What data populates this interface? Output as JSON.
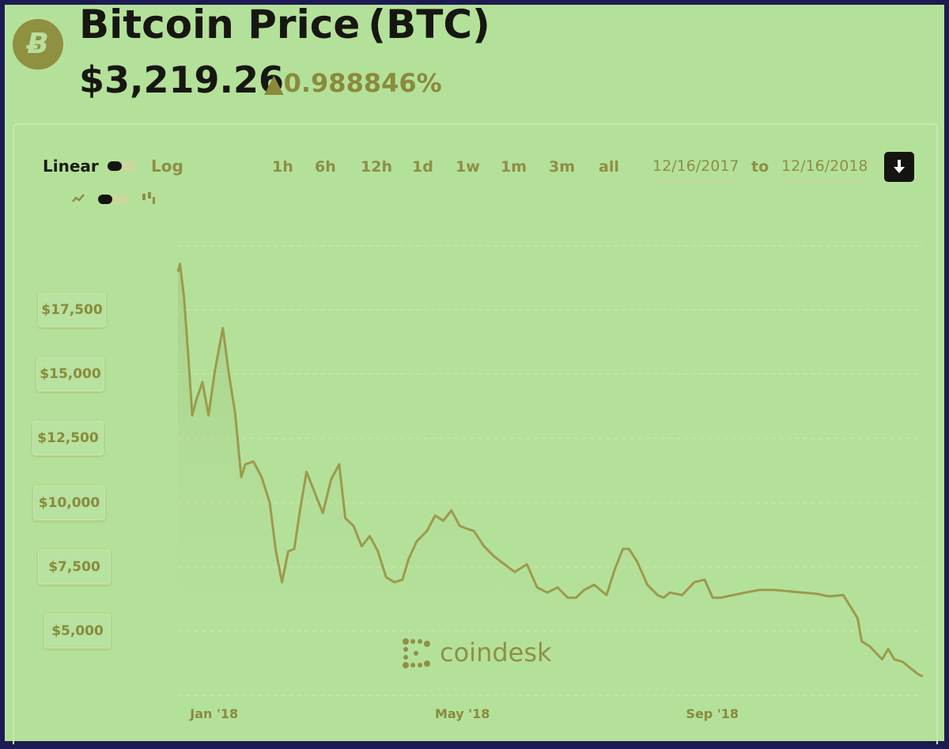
{
  "header": {
    "title": "Bitcoin Price (BTC)",
    "price": "$3,219.26",
    "change": "▲0.988846%",
    "logo_letter": "Ƀ"
  },
  "controls": {
    "scale_linear": "Linear",
    "scale_log": "Log",
    "ranges": [
      "1h",
      "6h",
      "12h",
      "1d",
      "1w",
      "1m",
      "3m",
      "all"
    ],
    "date_from": "12/16/2017",
    "to_label": "to",
    "date_to": "12/16/2018"
  },
  "watermark": "coindesk",
  "colors": {
    "background": "#b4e19a",
    "line": "#9d9a4c",
    "grid": "#cfe1a8",
    "text_dark": "#171711",
    "accent": "#8a8a3c"
  },
  "chart_data": {
    "type": "area",
    "ylim": [
      2500,
      20000
    ],
    "yticks": [
      "$5,000",
      "$7,500",
      "$10,000",
      "$12,500",
      "$15,000",
      "$17,500"
    ],
    "xticks": [
      {
        "label": "Jan '18",
        "date": "2018-01-01"
      },
      {
        "label": "May '18",
        "date": "2018-05-01"
      },
      {
        "label": "Sep '18",
        "date": "2018-09-01"
      }
    ],
    "x": [
      "2017-12-16",
      "2017-12-17",
      "2017-12-19",
      "2017-12-21",
      "2017-12-23",
      "2017-12-25",
      "2017-12-28",
      "2017-12-31",
      "2018-01-03",
      "2018-01-07",
      "2018-01-10",
      "2018-01-13",
      "2018-01-16",
      "2018-01-18",
      "2018-01-22",
      "2018-01-26",
      "2018-01-30",
      "2018-02-02",
      "2018-02-05",
      "2018-02-08",
      "2018-02-11",
      "2018-02-14",
      "2018-02-17",
      "2018-02-21",
      "2018-02-25",
      "2018-03-01",
      "2018-03-05",
      "2018-03-08",
      "2018-03-12",
      "2018-03-16",
      "2018-03-20",
      "2018-03-24",
      "2018-03-28",
      "2018-04-01",
      "2018-04-05",
      "2018-04-08",
      "2018-04-12",
      "2018-04-17",
      "2018-04-21",
      "2018-04-25",
      "2018-04-29",
      "2018-05-03",
      "2018-05-06",
      "2018-05-10",
      "2018-05-15",
      "2018-05-20",
      "2018-05-25",
      "2018-05-30",
      "2018-06-05",
      "2018-06-10",
      "2018-06-15",
      "2018-06-20",
      "2018-06-25",
      "2018-06-29",
      "2018-07-03",
      "2018-07-08",
      "2018-07-14",
      "2018-07-18",
      "2018-07-22",
      "2018-07-25",
      "2018-07-29",
      "2018-08-03",
      "2018-08-08",
      "2018-08-11",
      "2018-08-14",
      "2018-08-20",
      "2018-08-26",
      "2018-08-31",
      "2018-09-04",
      "2018-09-08",
      "2018-09-14",
      "2018-09-20",
      "2018-09-27",
      "2018-10-04",
      "2018-10-11",
      "2018-10-18",
      "2018-10-25",
      "2018-10-31",
      "2018-11-07",
      "2018-11-14",
      "2018-11-16",
      "2018-11-20",
      "2018-11-23",
      "2018-11-26",
      "2018-11-29",
      "2018-12-02",
      "2018-12-06",
      "2018-12-10",
      "2018-12-14",
      "2018-12-16"
    ],
    "values": [
      19000,
      19300,
      18000,
      15800,
      13400,
      14000,
      14700,
      13400,
      15100,
      16800,
      15000,
      13500,
      11000,
      11500,
      11600,
      11000,
      10000,
      8100,
      6900,
      8100,
      8200,
      9800,
      11200,
      10400,
      9600,
      10900,
      11500,
      9400,
      9100,
      8300,
      8700,
      8100,
      7100,
      6900,
      7000,
      7800,
      8500,
      8900,
      9500,
      9300,
      9700,
      9100,
      9000,
      8900,
      8300,
      7900,
      7600,
      7300,
      7600,
      6700,
      6500,
      6700,
      6300,
      6300,
      6600,
      6800,
      6400,
      7400,
      8200,
      8200,
      7700,
      6800,
      6400,
      6300,
      6500,
      6400,
      6900,
      7000,
      6300,
      6300,
      6400,
      6500,
      6600,
      6600,
      6550,
      6500,
      6450,
      6350,
      6400,
      5500,
      4600,
      4400,
      4150,
      3900,
      4300,
      3900,
      3800,
      3550,
      3300,
      3230
    ]
  }
}
